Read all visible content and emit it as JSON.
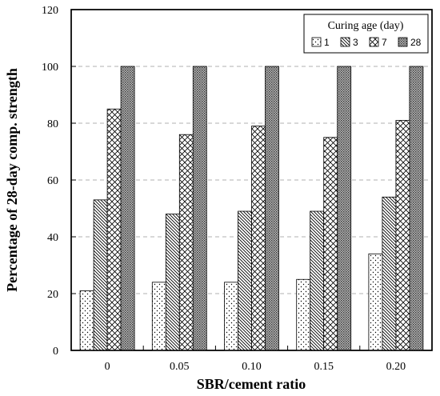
{
  "chart_data": {
    "type": "bar",
    "title": "",
    "xlabel": "SBR/cement ratio",
    "ylabel": "Percentage of 28-day comp. strength",
    "categories": [
      "0",
      "0.05",
      "0.10",
      "0.15",
      "0.20"
    ],
    "series": [
      {
        "name": "1",
        "values": [
          21,
          24,
          24,
          25,
          34
        ]
      },
      {
        "name": "3",
        "values": [
          53,
          48,
          49,
          49,
          54
        ]
      },
      {
        "name": "7",
        "values": [
          85,
          76,
          79,
          75,
          81
        ]
      },
      {
        "name": "28",
        "values": [
          100,
          100,
          100,
          100,
          100
        ]
      }
    ],
    "ylim": [
      0,
      120
    ],
    "yticks": [
      "0",
      "20",
      "40",
      "60",
      "80",
      "100",
      "120"
    ],
    "grid": "horizontal dashed",
    "legend": {
      "title": "Curing age (day)",
      "placement": "top-right"
    }
  }
}
